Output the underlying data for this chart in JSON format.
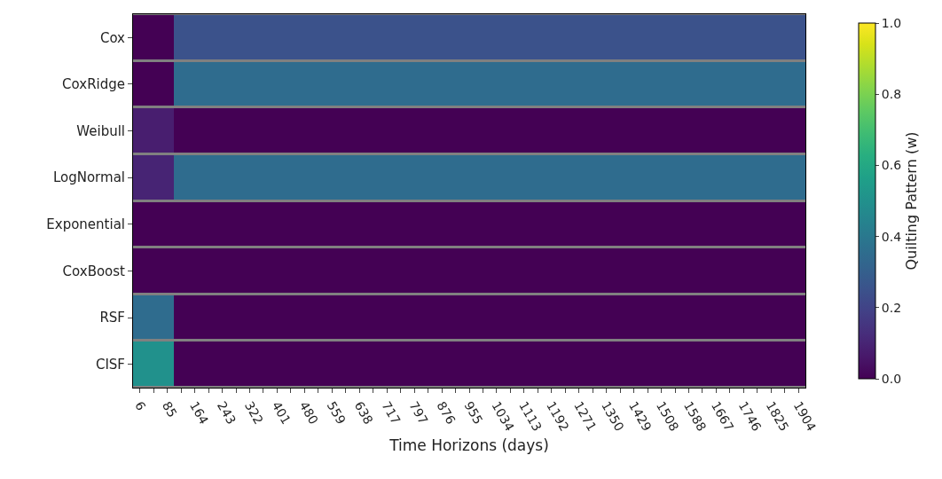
{
  "chart_data": {
    "type": "heatmap",
    "xlabel": "Time Horizons (days)",
    "clabel": "Quilting Pattern (w)",
    "categories": [
      "6",
      null,
      "85",
      null,
      "164",
      null,
      "243",
      null,
      "322",
      null,
      "401",
      null,
      "480",
      null,
      "559",
      null,
      "638",
      null,
      "717",
      null,
      "797",
      null,
      "876",
      null,
      "955",
      null,
      "1034",
      null,
      "1113",
      null,
      "1192",
      null,
      "1271",
      null,
      "1350",
      null,
      "1429",
      null,
      "1508",
      null,
      "1588",
      null,
      "1667",
      null,
      "1746",
      null,
      "1825",
      null,
      "1904"
    ],
    "y_categories": [
      "Cox",
      "CoxRidge",
      "Weibull",
      "LogNormal",
      "Exponential",
      "CoxBoost",
      "RSF",
      "CISF"
    ],
    "cells": [
      [
        0,
        0,
        0,
        0.25,
        0.25,
        0.25,
        0.25,
        0.25,
        0.25,
        0.25,
        0.25,
        0.25,
        0.25,
        0.25,
        0.25,
        0.25,
        0.25,
        0.25,
        0.25,
        0.25,
        0.25,
        0.25,
        0.25,
        0.25,
        0.25,
        0.25,
        0.25,
        0.25,
        0.25,
        0.25,
        0.25,
        0.25,
        0.25,
        0.25,
        0.25,
        0.25,
        0.25,
        0.25,
        0.25,
        0.25,
        0.25,
        0.25,
        0.25,
        0.25,
        0.25,
        0.25,
        0.25,
        0.25,
        0.25
      ],
      [
        0,
        0,
        0,
        0.35,
        0.35,
        0.35,
        0.35,
        0.35,
        0.35,
        0.35,
        0.35,
        0.35,
        0.35,
        0.35,
        0.35,
        0.35,
        0.35,
        0.35,
        0.35,
        0.35,
        0.35,
        0.35,
        0.35,
        0.35,
        0.35,
        0.35,
        0.35,
        0.35,
        0.35,
        0.35,
        0.35,
        0.35,
        0.35,
        0.35,
        0.35,
        0.35,
        0.35,
        0.35,
        0.35,
        0.35,
        0.35,
        0.35,
        0.35,
        0.35,
        0.35,
        0.35,
        0.35,
        0.35,
        0.35
      ],
      [
        0.08,
        0.08,
        0.08,
        0,
        0,
        0,
        0,
        0,
        0,
        0,
        0,
        0,
        0,
        0,
        0,
        0,
        0,
        0,
        0,
        0,
        0,
        0,
        0,
        0,
        0,
        0,
        0,
        0,
        0,
        0,
        0,
        0,
        0,
        0,
        0,
        0,
        0,
        0,
        0,
        0,
        0,
        0,
        0,
        0,
        0,
        0,
        0,
        0,
        0
      ],
      [
        0.1,
        0.1,
        0.1,
        0.35,
        0.35,
        0.35,
        0.35,
        0.35,
        0.35,
        0.35,
        0.35,
        0.35,
        0.35,
        0.35,
        0.35,
        0.35,
        0.35,
        0.35,
        0.35,
        0.35,
        0.35,
        0.35,
        0.35,
        0.35,
        0.35,
        0.35,
        0.35,
        0.35,
        0.35,
        0.35,
        0.35,
        0.35,
        0.35,
        0.35,
        0.35,
        0.35,
        0.35,
        0.35,
        0.35,
        0.35,
        0.35,
        0.35,
        0.35,
        0.35,
        0.35,
        0.35,
        0.35,
        0.35,
        0.35
      ],
      [
        0,
        0,
        0,
        0,
        0,
        0,
        0,
        0,
        0,
        0,
        0,
        0,
        0,
        0,
        0,
        0,
        0,
        0,
        0,
        0,
        0,
        0,
        0,
        0,
        0,
        0,
        0,
        0,
        0,
        0,
        0,
        0,
        0,
        0,
        0,
        0,
        0,
        0,
        0,
        0,
        0,
        0,
        0,
        0,
        0,
        0,
        0,
        0,
        0
      ],
      [
        0,
        0,
        0,
        0,
        0,
        0,
        0,
        0,
        0,
        0,
        0,
        0,
        0,
        0,
        0,
        0,
        0,
        0,
        0,
        0,
        0,
        0,
        0,
        0,
        0,
        0,
        0,
        0,
        0,
        0,
        0,
        0,
        0,
        0,
        0,
        0,
        0,
        0,
        0,
        0,
        0,
        0,
        0,
        0,
        0,
        0,
        0,
        0,
        0
      ],
      [
        0.35,
        0.35,
        0.35,
        0,
        0,
        0,
        0,
        0,
        0,
        0,
        0,
        0,
        0,
        0,
        0,
        0,
        0,
        0,
        0,
        0,
        0,
        0,
        0,
        0,
        0,
        0,
        0,
        0,
        0,
        0,
        0,
        0,
        0,
        0,
        0,
        0,
        0,
        0,
        0,
        0,
        0,
        0,
        0,
        0,
        0,
        0,
        0,
        0,
        0
      ],
      [
        0.5,
        0.5,
        0.5,
        0,
        0,
        0,
        0,
        0,
        0,
        0,
        0,
        0,
        0,
        0,
        0,
        0,
        0,
        0,
        0,
        0,
        0,
        0,
        0,
        0,
        0,
        0,
        0,
        0,
        0,
        0,
        0,
        0,
        0,
        0,
        0,
        0,
        0,
        0,
        0,
        0,
        0,
        0,
        0,
        0,
        0,
        0,
        0,
        0,
        0
      ]
    ],
    "clim": [
      0,
      1
    ],
    "cticks": [
      {
        "value": 0,
        "label": "0.0"
      },
      0.2,
      0.4,
      0.6,
      0.8,
      {
        "value": 1,
        "label": "1.0"
      }
    ]
  }
}
